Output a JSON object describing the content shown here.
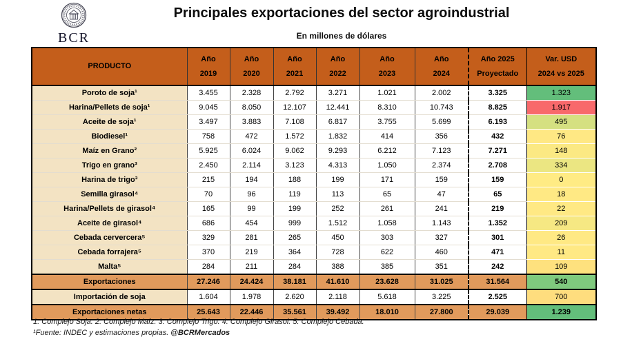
{
  "header": {
    "logo_text": "BCR",
    "title": "Principales exportaciones del sector agroindustrial",
    "subtitle": "En millones de dólares"
  },
  "colors": {
    "header_bg": "#C45E1B",
    "summary_bg": "#E19A5C",
    "product_bg": "#F3E3C3",
    "positive_green": "#63BE7B",
    "negative_red": "#F8696B",
    "neutral_yellow": "#FFE984"
  },
  "chart_data": {
    "type": "table",
    "title": "Principales exportaciones del sector agroindustrial",
    "units": "En millones de dólares",
    "product_header": "PRODUCTO",
    "year_columns": [
      "Año\n2019",
      "Año\n2020",
      "Año\n2021",
      "Año\n2022",
      "Año\n2023",
      "Año\n2024"
    ],
    "projected_column": "Año 2025\nProyectado",
    "variation_column": "Var. USD\n2024 vs 2025",
    "rows": [
      {
        "product": "Poroto de soja¹",
        "row_type": "data",
        "values": [
          "3.455",
          "2.328",
          "2.792",
          "3.271",
          "1.021",
          "2.002"
        ],
        "projected": "3.325",
        "variation": "1.323",
        "variation_color": "#63BE7B"
      },
      {
        "product": "Harina/Pellets de soja¹",
        "row_type": "data",
        "values": [
          "9.045",
          "8.050",
          "12.107",
          "12.441",
          "8.310",
          "10.743"
        ],
        "projected": "8.825",
        "variation": "1.917",
        "variation_color": "#F8696B"
      },
      {
        "product": "Aceite de soja¹",
        "row_type": "data",
        "values": [
          "3.497",
          "3.883",
          "7.108",
          "6.817",
          "3.755",
          "5.699"
        ],
        "projected": "6.193",
        "variation": "495",
        "variation_color": "#D5E081"
      },
      {
        "product": "Biodiesel¹",
        "row_type": "data",
        "values": [
          "758",
          "472",
          "1.572",
          "1.832",
          "414",
          "356"
        ],
        "projected": "432",
        "variation": "76",
        "variation_color": "#FFE884"
      },
      {
        "product": "Maíz en Grano²",
        "row_type": "data",
        "values": [
          "5.925",
          "6.024",
          "9.062",
          "9.293",
          "6.212",
          "7.123"
        ],
        "projected": "7.271",
        "variation": "148",
        "variation_color": "#FBE983"
      },
      {
        "product": "Trigo en grano³",
        "row_type": "data",
        "values": [
          "2.450",
          "2.114",
          "3.123",
          "4.313",
          "1.050",
          "2.374"
        ],
        "projected": "2.708",
        "variation": "334",
        "variation_color": "#EBE682"
      },
      {
        "product": "Harina de trigo³",
        "row_type": "data",
        "values": [
          "215",
          "194",
          "188",
          "199",
          "171",
          "159"
        ],
        "projected": "159",
        "variation": "0",
        "variation_color": "#FFEB84"
      },
      {
        "product": "Semilla girasol⁴",
        "row_type": "data",
        "values": [
          "70",
          "96",
          "119",
          "113",
          "65",
          "47"
        ],
        "projected": "65",
        "variation": "18",
        "variation_color": "#FFE984"
      },
      {
        "product": "Harina/Pellets de girasol⁴",
        "row_type": "data",
        "values": [
          "165",
          "99",
          "199",
          "252",
          "261",
          "241"
        ],
        "projected": "219",
        "variation": "22",
        "variation_color": "#FFE984"
      },
      {
        "product": "Aceite de girasol⁴",
        "row_type": "data",
        "values": [
          "686",
          "454",
          "999",
          "1.512",
          "1.058",
          "1.143"
        ],
        "projected": "1.352",
        "variation": "209",
        "variation_color": "#F6E883"
      },
      {
        "product": "Cebada cervercera⁵",
        "row_type": "data",
        "values": [
          "329",
          "281",
          "265",
          "450",
          "303",
          "327"
        ],
        "projected": "301",
        "variation": "26",
        "variation_color": "#FFE984"
      },
      {
        "product": "Cebada forrajera⁵",
        "row_type": "data",
        "values": [
          "370",
          "219",
          "364",
          "728",
          "622",
          "460"
        ],
        "projected": "471",
        "variation": "11",
        "variation_color": "#FFE984"
      },
      {
        "product": "Malta⁵",
        "row_type": "data",
        "values": [
          "284",
          "211",
          "284",
          "388",
          "385",
          "351"
        ],
        "projected": "242",
        "variation": "109",
        "variation_color": "#FEE17E"
      },
      {
        "product": "Exportaciones",
        "row_type": "summary",
        "values": [
          "27.246",
          "24.424",
          "38.181",
          "41.610",
          "23.628",
          "31.025"
        ],
        "projected": "31.564",
        "variation": "540",
        "variation_color": "#7FCA7E"
      },
      {
        "product": "Importación de soja",
        "row_type": "import",
        "values": [
          "1.604",
          "1.978",
          "2.620",
          "2.118",
          "5.618",
          "3.225"
        ],
        "projected": "2.525",
        "variation": "700",
        "variation_color": "#FEDD7E"
      },
      {
        "product": "Exportaciones netas",
        "row_type": "summary",
        "values": [
          "25.643",
          "22.446",
          "35.561",
          "39.492",
          "18.010",
          "27.800"
        ],
        "projected": "29.039",
        "variation": "1.239",
        "variation_color": "#63BE7B"
      }
    ]
  },
  "footnotes": {
    "line1": "1: Complejo Soja.   2: Complejo Maíz.   3: Complejo Trigo.   4: Complejo Girasol.   5: Complejo Cebada.",
    "line2_source": "¹Fuente: INDEC y estimaciones propias.",
    "line2_handle": "@BCRMercados"
  }
}
